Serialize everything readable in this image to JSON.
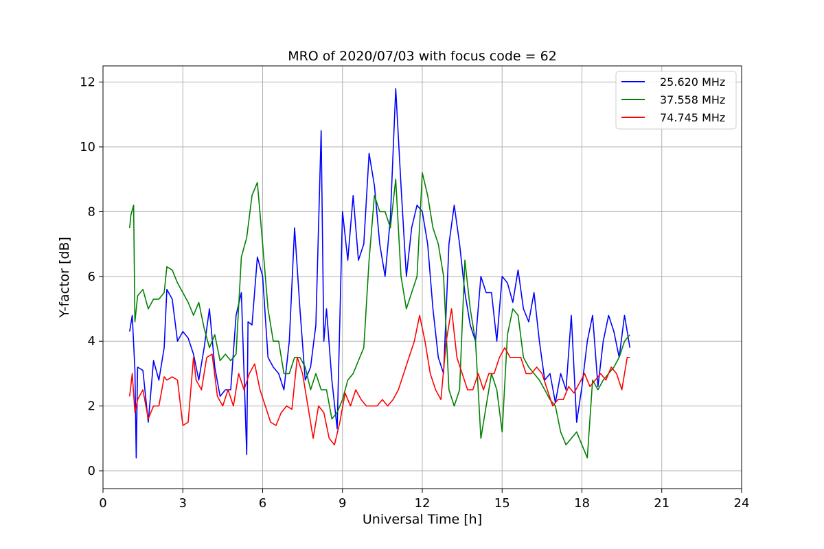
{
  "chart_data": {
    "type": "line",
    "title": "MRO of 2020/07/03 with focus code = 62",
    "xlabel": "Universal Time [h]",
    "ylabel": "Y-factor [dB]",
    "xlim": [
      0,
      24
    ],
    "ylim": [
      -0.55,
      12.5
    ],
    "xticks": [
      0,
      3,
      6,
      9,
      12,
      15,
      18,
      21,
      24
    ],
    "yticks": [
      0,
      2,
      4,
      6,
      8,
      10,
      12
    ],
    "grid": true,
    "legend_position": "top-right",
    "series": [
      {
        "name": "25.620 MHz",
        "color": "#0000ff",
        "x": [
          1.0,
          1.1,
          1.2,
          1.25,
          1.3,
          1.5,
          1.7,
          1.9,
          2.1,
          2.3,
          2.4,
          2.6,
          2.8,
          3.0,
          3.2,
          3.4,
          3.6,
          3.8,
          4.0,
          4.2,
          4.4,
          4.6,
          4.8,
          5.0,
          5.2,
          5.4,
          5.45,
          5.6,
          5.8,
          6.0,
          6.2,
          6.4,
          6.6,
          6.8,
          7.0,
          7.2,
          7.4,
          7.6,
          7.8,
          8.0,
          8.2,
          8.3,
          8.4,
          8.6,
          8.8,
          9.0,
          9.2,
          9.4,
          9.6,
          9.8,
          10.0,
          10.2,
          10.4,
          10.6,
          10.8,
          11.0,
          11.2,
          11.4,
          11.6,
          11.8,
          12.0,
          12.2,
          12.4,
          12.6,
          12.8,
          13.0,
          13.2,
          13.4,
          13.6,
          13.8,
          14.0,
          14.2,
          14.4,
          14.6,
          14.8,
          15.0,
          15.2,
          15.4,
          15.6,
          15.8,
          16.0,
          16.2,
          16.4,
          16.6,
          16.8,
          17.0,
          17.2,
          17.4,
          17.6,
          17.8,
          18.0,
          18.2,
          18.4,
          18.6,
          18.8,
          19.0,
          19.2,
          19.4,
          19.6,
          19.8
        ],
        "y": [
          4.3,
          4.8,
          3.1,
          0.4,
          3.2,
          3.1,
          1.5,
          3.4,
          2.8,
          3.8,
          5.6,
          5.3,
          4.0,
          4.3,
          4.1,
          3.6,
          2.8,
          3.8,
          5.0,
          3.2,
          2.3,
          2.5,
          2.5,
          4.8,
          5.5,
          0.5,
          4.6,
          4.5,
          6.6,
          6.0,
          3.5,
          3.2,
          3.0,
          2.5,
          4.0,
          7.5,
          5.0,
          2.8,
          3.2,
          4.5,
          10.5,
          4.0,
          5.0,
          2.8,
          1.3,
          8.0,
          6.5,
          8.5,
          6.5,
          7.0,
          9.8,
          8.8,
          7.0,
          6.0,
          7.8,
          11.8,
          8.8,
          6.0,
          7.5,
          8.2,
          8.0,
          7.0,
          5.0,
          3.5,
          3.0,
          7.0,
          8.2,
          7.0,
          5.5,
          4.5,
          4.0,
          6.0,
          5.5,
          5.5,
          4.0,
          6.0,
          5.8,
          5.2,
          6.2,
          5.0,
          4.6,
          5.5,
          4.0,
          2.8,
          3.0,
          2.1,
          3.0,
          2.5,
          4.8,
          1.5,
          2.6,
          4.0,
          4.8,
          2.6,
          4.0,
          4.8,
          4.3,
          3.5,
          4.8,
          3.8
        ]
      },
      {
        "name": "37.558 MHz",
        "color": "#008000",
        "x": [
          1.0,
          1.05,
          1.15,
          1.2,
          1.3,
          1.5,
          1.7,
          1.9,
          2.1,
          2.3,
          2.4,
          2.6,
          2.8,
          3.0,
          3.2,
          3.4,
          3.6,
          3.8,
          4.0,
          4.2,
          4.4,
          4.6,
          4.8,
          5.0,
          5.2,
          5.4,
          5.6,
          5.8,
          6.0,
          6.2,
          6.4,
          6.6,
          6.8,
          7.0,
          7.2,
          7.4,
          7.6,
          7.8,
          8.0,
          8.2,
          8.4,
          8.6,
          8.8,
          9.0,
          9.2,
          9.4,
          9.6,
          9.8,
          10.0,
          10.2,
          10.4,
          10.6,
          10.8,
          11.0,
          11.2,
          11.4,
          11.6,
          11.8,
          12.0,
          12.2,
          12.4,
          12.6,
          12.8,
          13.0,
          13.2,
          13.4,
          13.6,
          13.8,
          14.0,
          14.2,
          14.4,
          14.6,
          14.8,
          15.0,
          15.2,
          15.4,
          15.6,
          15.8,
          16.0,
          16.2,
          16.4,
          16.6,
          16.8,
          17.0,
          17.2,
          17.4,
          17.6,
          17.8,
          18.0,
          18.2,
          18.4,
          18.6,
          18.8,
          19.0,
          19.2,
          19.4,
          19.6,
          19.8
        ],
        "y": [
          7.5,
          7.9,
          8.2,
          4.6,
          5.4,
          5.6,
          5.0,
          5.3,
          5.3,
          5.5,
          6.3,
          6.2,
          5.8,
          5.5,
          5.2,
          4.8,
          5.2,
          4.4,
          3.8,
          4.2,
          3.4,
          3.6,
          3.4,
          3.6,
          6.6,
          7.2,
          8.5,
          8.9,
          7.0,
          5.0,
          4.0,
          4.0,
          3.0,
          3.0,
          3.5,
          3.5,
          3.2,
          2.5,
          3.0,
          2.5,
          2.5,
          1.6,
          1.8,
          2.2,
          2.8,
          3.0,
          3.4,
          3.8,
          6.5,
          8.5,
          8.0,
          8.0,
          7.5,
          9.0,
          6.0,
          5.0,
          5.5,
          6.0,
          9.2,
          8.5,
          7.5,
          7.0,
          6.0,
          2.5,
          2.0,
          2.5,
          6.5,
          5.0,
          4.0,
          1.0,
          2.0,
          3.0,
          2.5,
          1.2,
          4.2,
          5.0,
          4.8,
          3.5,
          3.2,
          3.0,
          2.8,
          2.5,
          2.2,
          2.0,
          1.2,
          0.8,
          1.0,
          1.2,
          0.8,
          0.4,
          2.8,
          2.5,
          2.8,
          3.0,
          3.2,
          3.5,
          4.0,
          4.2
        ]
      },
      {
        "name": "74.745 MHz",
        "color": "#ff0000",
        "x": [
          1.0,
          1.1,
          1.2,
          1.3,
          1.5,
          1.7,
          1.9,
          2.1,
          2.3,
          2.4,
          2.6,
          2.8,
          3.0,
          3.2,
          3.4,
          3.5,
          3.7,
          3.9,
          4.1,
          4.3,
          4.5,
          4.7,
          4.9,
          5.1,
          5.3,
          5.5,
          5.7,
          5.9,
          6.1,
          6.3,
          6.5,
          6.7,
          6.9,
          7.1,
          7.3,
          7.5,
          7.7,
          7.9,
          8.1,
          8.3,
          8.5,
          8.7,
          8.9,
          9.1,
          9.3,
          9.5,
          9.7,
          9.9,
          10.1,
          10.3,
          10.5,
          10.7,
          10.9,
          11.1,
          11.3,
          11.5,
          11.7,
          11.9,
          12.1,
          12.3,
          12.5,
          12.7,
          12.9,
          13.1,
          13.3,
          13.5,
          13.7,
          13.9,
          14.1,
          14.3,
          14.5,
          14.7,
          14.9,
          15.1,
          15.3,
          15.5,
          15.7,
          15.9,
          16.1,
          16.3,
          16.5,
          16.7,
          16.9,
          17.1,
          17.3,
          17.5,
          17.7,
          17.9,
          18.1,
          18.3,
          18.5,
          18.7,
          18.9,
          19.1,
          19.3,
          19.5,
          19.7,
          19.8
        ],
        "y": [
          2.3,
          3.0,
          1.8,
          2.2,
          2.5,
          1.6,
          2.0,
          2.0,
          2.9,
          2.8,
          2.9,
          2.8,
          1.4,
          1.5,
          3.5,
          2.8,
          2.5,
          3.5,
          3.6,
          2.3,
          2.0,
          2.5,
          2.0,
          3.0,
          2.5,
          3.0,
          3.3,
          2.5,
          2.0,
          1.5,
          1.4,
          1.8,
          2.0,
          1.9,
          3.5,
          3.0,
          2.0,
          1.0,
          2.0,
          1.8,
          1.0,
          0.8,
          1.5,
          2.4,
          2.0,
          2.5,
          2.2,
          2.0,
          2.0,
          2.0,
          2.2,
          2.0,
          2.2,
          2.5,
          3.0,
          3.5,
          4.0,
          4.8,
          4.0,
          3.0,
          2.5,
          2.2,
          4.0,
          5.0,
          3.5,
          3.0,
          2.5,
          2.5,
          3.0,
          2.5,
          3.0,
          3.0,
          3.5,
          3.8,
          3.5,
          3.5,
          3.5,
          3.0,
          3.0,
          3.2,
          3.0,
          2.5,
          2.0,
          2.2,
          2.2,
          2.6,
          2.4,
          2.7,
          3.0,
          2.6,
          2.8,
          3.0,
          2.8,
          3.2,
          3.0,
          2.5,
          3.5,
          3.5
        ]
      }
    ]
  }
}
